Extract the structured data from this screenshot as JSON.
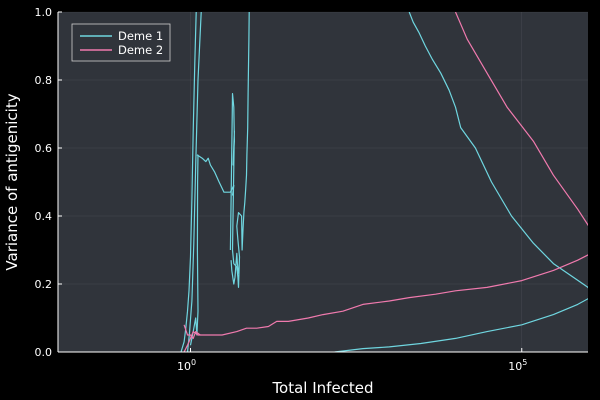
{
  "chart_data": {
    "type": "line",
    "title": "",
    "xlabel": "Total Infected",
    "ylabel": "Variance of antigenicity",
    "x_scale": "log10",
    "xlim": [
      0.01,
      1000000
    ],
    "ylim": [
      0,
      1
    ],
    "x_ticks": [
      {
        "value": 1,
        "base": "10",
        "exp": "0"
      },
      {
        "value": 100000,
        "base": "10",
        "exp": "5"
      }
    ],
    "y_ticks": [
      "0.0",
      "0.2",
      "0.4",
      "0.6",
      "0.8",
      "1.0"
    ],
    "grid": true,
    "legend_position": "top-left",
    "background_color": "#30343b",
    "page_color": "#000000",
    "series": [
      {
        "name": "Deme 1",
        "color": "#6fd6e0",
        "segments": [
          [
            [
              0.72,
              0
            ],
            [
              0.8,
              0.03
            ],
            [
              0.85,
              0.07
            ],
            [
              0.9,
              0.12
            ],
            [
              0.95,
              0.18
            ],
            [
              1.0,
              0.28
            ],
            [
              1.05,
              0.45
            ],
            [
              1.1,
              0.65
            ],
            [
              1.16,
              0.85
            ],
            [
              1.22,
              1.0
            ]
          ],
          [
            [
              0.9,
              0.0
            ],
            [
              0.96,
              0.05
            ],
            [
              1.05,
              0.15
            ],
            [
              1.12,
              0.32
            ],
            [
              1.2,
              0.55
            ],
            [
              1.3,
              0.8
            ],
            [
              1.45,
              1.0
            ]
          ],
          [
            [
              1.25,
              0.58
            ],
            [
              1.5,
              0.57
            ],
            [
              1.7,
              0.56
            ],
            [
              1.85,
              0.57
            ],
            [
              2.0,
              0.55
            ],
            [
              2.3,
              0.53
            ],
            [
              2.7,
              0.5
            ],
            [
              3.2,
              0.47
            ],
            [
              4.0,
              0.47
            ],
            [
              4.5,
              0.49
            ],
            [
              4.3,
              0.46
            ]
          ],
          [
            [
              1.0,
              0.02
            ],
            [
              1.1,
              0.06
            ],
            [
              1.2,
              0.1
            ],
            [
              1.25,
              0.05
            ],
            [
              1.3,
              0.12
            ],
            [
              1.27,
              0.3
            ],
            [
              1.28,
              0.5
            ],
            [
              1.3,
              0.58
            ]
          ],
          [
            [
              4.0,
              0.3
            ],
            [
              4.1,
              0.45
            ],
            [
              4.2,
              0.6
            ],
            [
              4.3,
              0.76
            ],
            [
              4.5,
              0.72
            ],
            [
              4.6,
              0.62
            ],
            [
              4.4,
              0.55
            ],
            [
              4.6,
              0.65
            ],
            [
              4.55,
              0.6
            ],
            [
              4.3,
              0.3
            ],
            [
              4.5,
              0.26
            ],
            [
              5.0,
              0.25
            ],
            [
              5.2,
              0.22
            ],
            [
              5.3,
              0.19
            ],
            [
              5.5,
              0.28
            ],
            [
              5.2,
              0.33
            ],
            [
              5.0,
              0.37
            ],
            [
              5.3,
              0.41
            ],
            [
              5.9,
              0.4
            ],
            [
              6.0,
              0.3
            ],
            [
              6.2,
              0.36
            ],
            [
              6.4,
              0.41
            ],
            [
              6.6,
              0.44
            ],
            [
              6.8,
              0.48
            ],
            [
              7.0,
              0.52
            ],
            [
              7.1,
              0.58
            ],
            [
              7.3,
              0.66
            ],
            [
              7.4,
              0.76
            ],
            [
              7.5,
              0.84
            ],
            [
              7.6,
              0.92
            ],
            [
              7.7,
              1.0
            ]
          ],
          [
            [
              4.1,
              0.27
            ],
            [
              4.2,
              0.24
            ],
            [
              4.5,
              0.2
            ],
            [
              4.7,
              0.22
            ],
            [
              5.0,
              0.29
            ],
            [
              5.1,
              0.26
            ],
            [
              5.3,
              0.23
            ]
          ],
          [
            [
              150,
              0
            ],
            [
              400,
              0.01
            ],
            [
              1000,
              0.015
            ],
            [
              3000,
              0.025
            ],
            [
              10000,
              0.04
            ],
            [
              30000,
              0.06
            ],
            [
              100000,
              0.08
            ],
            [
              300000,
              0.11
            ],
            [
              700000,
              0.14
            ],
            [
              1200000,
              0.165
            ],
            [
              1000000,
              0.19
            ],
            [
              600000,
              0.22
            ],
            [
              300000,
              0.26
            ],
            [
              150000,
              0.32
            ],
            [
              70000,
              0.4
            ],
            [
              35000,
              0.5
            ],
            [
              20000,
              0.6
            ],
            [
              12000,
              0.66
            ],
            [
              10000,
              0.72
            ],
            [
              8000,
              0.77
            ],
            [
              6000,
              0.82
            ],
            [
              4500,
              0.86
            ],
            [
              3500,
              0.9
            ],
            [
              2800,
              0.94
            ],
            [
              2300,
              0.97
            ],
            [
              2000,
              1.0
            ]
          ]
        ]
      },
      {
        "name": "Deme 2",
        "color": "#f07aae",
        "segments": [
          [
            [
              0.8,
              0
            ],
            [
              0.9,
              0.02
            ],
            [
              1.0,
              0.04
            ],
            [
              1.1,
              0.06
            ],
            [
              1.3,
              0.05
            ],
            [
              1.5,
              0.05
            ],
            [
              2.0,
              0.05
            ],
            [
              3.0,
              0.05
            ],
            [
              5.0,
              0.06
            ],
            [
              7.0,
              0.07
            ],
            [
              10,
              0.07
            ],
            [
              15,
              0.075
            ],
            [
              20,
              0.09
            ],
            [
              30,
              0.09
            ],
            [
              60,
              0.1
            ],
            [
              100,
              0.11
            ],
            [
              200,
              0.12
            ],
            [
              400,
              0.14
            ],
            [
              1000,
              0.15
            ],
            [
              2000,
              0.16
            ],
            [
              5000,
              0.17
            ],
            [
              10000,
              0.18
            ],
            [
              30000,
              0.19
            ],
            [
              100000,
              0.21
            ],
            [
              300000,
              0.24
            ],
            [
              700000,
              0.27
            ],
            [
              1400000,
              0.3
            ],
            [
              1200000,
              0.35
            ],
            [
              700000,
              0.42
            ],
            [
              300000,
              0.52
            ],
            [
              150000,
              0.62
            ],
            [
              60000,
              0.72
            ],
            [
              30000,
              0.82
            ],
            [
              15000,
              0.92
            ],
            [
              10000,
              1.0
            ]
          ],
          [
            [
              0.8,
              0.08
            ],
            [
              0.9,
              0.05
            ],
            [
              1.0,
              0.05
            ],
            [
              1.1,
              0.04
            ],
            [
              1.2,
              0.06
            ],
            [
              1.4,
              0.05
            ]
          ]
        ]
      }
    ]
  }
}
